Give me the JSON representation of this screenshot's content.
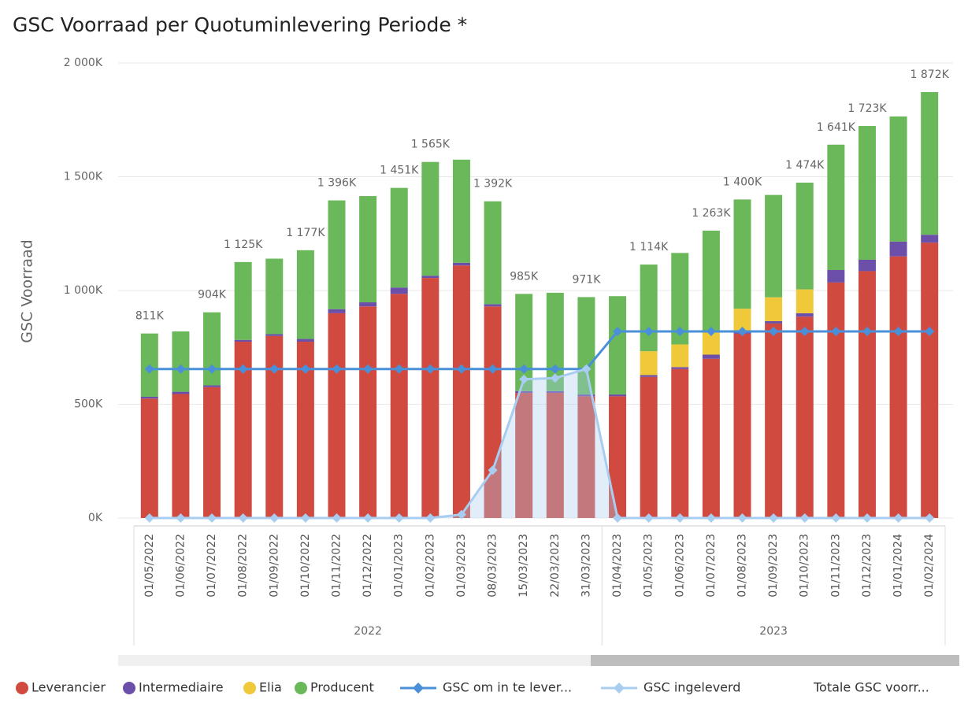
{
  "chart_data": {
    "type": "bar",
    "title": "GSC Voorraad per Quotuminlevering Periode *",
    "ylabel": "GSC Voorraad",
    "categories": [
      "01/05/2022",
      "01/06/2022",
      "01/07/2022",
      "01/08/2022",
      "01/09/2022",
      "01/10/2022",
      "01/11/2022",
      "01/12/2022",
      "01/01/2023",
      "01/02/2023",
      "01/03/2023",
      "08/03/2023",
      "15/03/2023",
      "22/03/2023",
      "31/03/2023",
      "01/04/2023",
      "01/05/2023",
      "01/06/2023",
      "01/07/2023",
      "01/08/2023",
      "01/09/2023",
      "01/10/2023",
      "01/11/2023",
      "01/12/2023",
      "01/01/2024",
      "01/02/2024"
    ],
    "x_groups": [
      {
        "label": "2022",
        "count": 15
      },
      {
        "label": "2023",
        "count": 11
      }
    ],
    "ylim": [
      0,
      2000
    ],
    "yticks": [
      {
        "value": 0,
        "label": "0K"
      },
      {
        "value": 500,
        "label": "500K"
      },
      {
        "value": 1000,
        "label": "1 000K"
      },
      {
        "value": 1500,
        "label": "1 500K"
      },
      {
        "value": 2000,
        "label": "2 000K"
      }
    ],
    "grid": true,
    "series": [
      {
        "name": "Leverancier",
        "type": "stacked_bar",
        "color": "#d04a40",
        "values": [
          525,
          545,
          575,
          775,
          800,
          775,
          900,
          930,
          985,
          1055,
          1110,
          930,
          550,
          550,
          535,
          535,
          620,
          655,
          700,
          810,
          855,
          885,
          1035,
          1085,
          1150,
          1210
        ]
      },
      {
        "name": "Intermediaire",
        "type": "stacked_bar",
        "color": "#6b4fa8",
        "values": [
          8,
          10,
          8,
          8,
          8,
          12,
          18,
          18,
          28,
          10,
          12,
          10,
          8,
          8,
          8,
          8,
          8,
          8,
          18,
          15,
          10,
          15,
          55,
          50,
          65,
          35
        ]
      },
      {
        "name": "Elia",
        "type": "stacked_bar",
        "color": "#f0c93a",
        "values": [
          0,
          0,
          0,
          0,
          0,
          0,
          0,
          0,
          0,
          0,
          0,
          0,
          0,
          0,
          0,
          0,
          105,
          100,
          100,
          95,
          105,
          105,
          0,
          0,
          0,
          0
        ]
      },
      {
        "name": "Producent",
        "type": "stacked_bar",
        "color": "#6ab85a",
        "values": [
          278,
          265,
          321,
          342,
          332,
          390,
          478,
          467,
          438,
          500,
          453,
          452,
          427,
          432,
          428,
          432,
          381,
          402,
          445,
          480,
          450,
          469,
          551,
          588,
          550,
          627
        ]
      },
      {
        "name": "GSC om in te lever...",
        "type": "line",
        "color": "#4a90d9",
        "values": [
          655,
          655,
          655,
          655,
          655,
          655,
          655,
          655,
          655,
          655,
          655,
          655,
          655,
          655,
          655,
          820,
          820,
          820,
          820,
          820,
          820,
          820,
          820,
          820,
          820,
          820
        ]
      },
      {
        "name": "GSC ingeleverd",
        "type": "area",
        "color": "#a8cdf0",
        "values": [
          0,
          0,
          0,
          0,
          0,
          0,
          0,
          0,
          0,
          0,
          15,
          210,
          610,
          615,
          655,
          0,
          0,
          0,
          0,
          0,
          0,
          0,
          0,
          0,
          0,
          0
        ]
      },
      {
        "name": "Totale GSC voorr...",
        "type": "labels",
        "values": [
          811,
          820,
          904,
          1125,
          1140,
          1177,
          1396,
          1415,
          1451,
          1565,
          1575,
          1392,
          985,
          990,
          971,
          975,
          1114,
          1165,
          1263,
          1400,
          1420,
          1474,
          1641,
          1723,
          1765,
          1872
        ],
        "value_labels": [
          "811K",
          null,
          "904K",
          "1 125K",
          null,
          "1 177K",
          "1 396K",
          null,
          "1 451K",
          "1 565K",
          null,
          "1 392K",
          "985K",
          null,
          "971K",
          null,
          "1 114K",
          null,
          "1 263K",
          "1 400K",
          null,
          "1 474K",
          "1 641K",
          "1 723K",
          null,
          "1 872K"
        ]
      }
    ]
  }
}
